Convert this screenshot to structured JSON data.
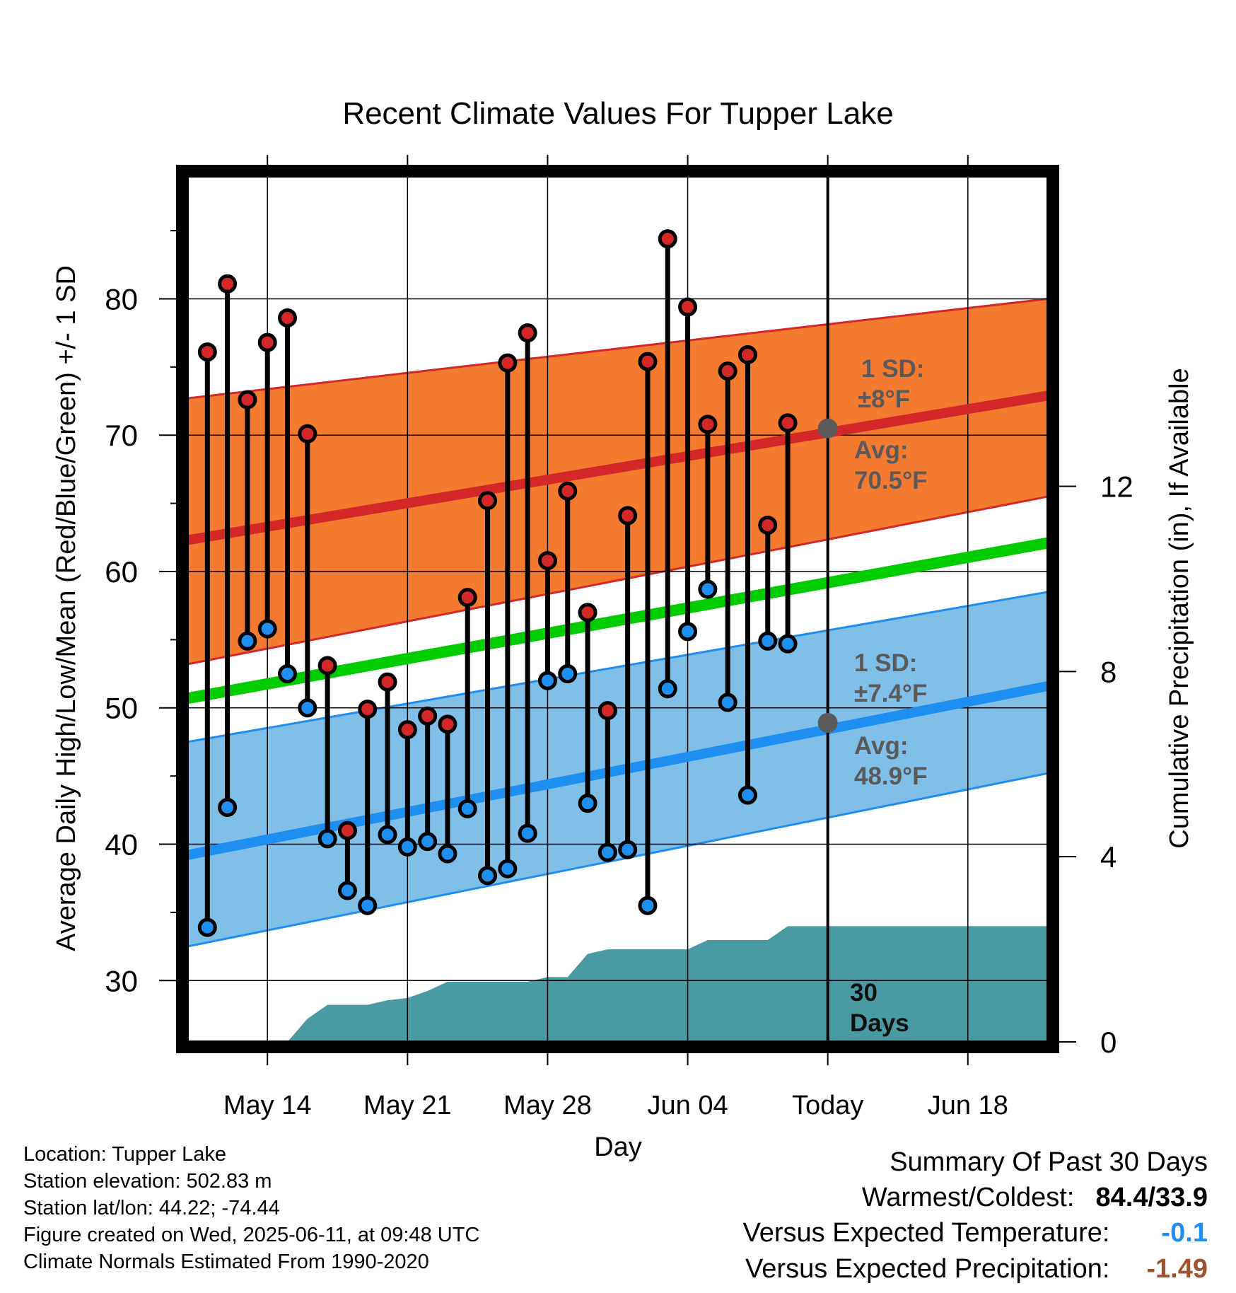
{
  "chart_data": {
    "type": "line",
    "title": "Recent Climate Values For Tupper Lake",
    "xlabel": "Day",
    "ylabel": "Average Daily High/Low/Mean (Red/Blue/Green) +/- 1 SD",
    "y2label": "Cumulative Precipitation (in), If Available",
    "ylim": [
      25.5,
      89
    ],
    "y_ticks": [
      30,
      40,
      50,
      60,
      70,
      80
    ],
    "y2lim": [
      0,
      18.7
    ],
    "y2_ticks": [
      0,
      4,
      8,
      12
    ],
    "x_range": [
      "2025-05-10",
      "2025-06-22"
    ],
    "x_tick_labels": [
      {
        "date": "2025-05-14",
        "label": "May 14"
      },
      {
        "date": "2025-05-21",
        "label": "May 21"
      },
      {
        "date": "2025-05-28",
        "label": "May 28"
      },
      {
        "date": "2025-06-04",
        "label": "Jun 04"
      },
      {
        "date": "2025-06-11",
        "label": "Today"
      },
      {
        "date": "2025-06-18",
        "label": "Jun 18"
      }
    ],
    "grid": true,
    "today": "2025-06-11",
    "normals": {
      "high_avg": {
        "start": 62.3,
        "end": 72.9,
        "color": "#d42828"
      },
      "high_band": {
        "start_lower": 53.2,
        "start_upper": 72.7,
        "end_lower": 65.5,
        "end_upper": 80.0,
        "color": "#f47a30"
      },
      "mean_avg": {
        "start": 50.7,
        "end": 62.1,
        "color": "#00cc00"
      },
      "low_avg": {
        "start": 39.2,
        "end": 51.6,
        "color": "#1e8ff0"
      },
      "low_band": {
        "start_lower": 32.5,
        "start_upper": 47.5,
        "end_lower": 45.2,
        "end_upper": 58.5,
        "color": "#7fbfe8"
      }
    },
    "series": [
      {
        "name": "High",
        "color": "#d42828",
        "values": [
          {
            "date": "2025-05-11",
            "y": 76.1
          },
          {
            "date": "2025-05-12",
            "y": 81.1
          },
          {
            "date": "2025-05-13",
            "y": 72.6
          },
          {
            "date": "2025-05-14",
            "y": 76.8
          },
          {
            "date": "2025-05-15",
            "y": 78.6
          },
          {
            "date": "2025-05-16",
            "y": 70.1
          },
          {
            "date": "2025-05-17",
            "y": 53.1
          },
          {
            "date": "2025-05-18",
            "y": 41.0
          },
          {
            "date": "2025-05-19",
            "y": 49.9
          },
          {
            "date": "2025-05-20",
            "y": 51.9
          },
          {
            "date": "2025-05-21",
            "y": 48.4
          },
          {
            "date": "2025-05-22",
            "y": 49.4
          },
          {
            "date": "2025-05-23",
            "y": 48.8
          },
          {
            "date": "2025-05-24",
            "y": 58.1
          },
          {
            "date": "2025-05-25",
            "y": 65.2
          },
          {
            "date": "2025-05-26",
            "y": 75.3
          },
          {
            "date": "2025-05-27",
            "y": 77.5
          },
          {
            "date": "2025-05-28",
            "y": 60.8
          },
          {
            "date": "2025-05-29",
            "y": 65.9
          },
          {
            "date": "2025-05-30",
            "y": 57.0
          },
          {
            "date": "2025-05-31",
            "y": 49.8
          },
          {
            "date": "2025-06-01",
            "y": 64.1
          },
          {
            "date": "2025-06-02",
            "y": 75.4
          },
          {
            "date": "2025-06-03",
            "y": 84.4
          },
          {
            "date": "2025-06-04",
            "y": 79.4
          },
          {
            "date": "2025-06-05",
            "y": 70.8
          },
          {
            "date": "2025-06-06",
            "y": 74.7
          },
          {
            "date": "2025-06-07",
            "y": 75.9
          },
          {
            "date": "2025-06-08",
            "y": 63.4
          },
          {
            "date": "2025-06-09",
            "y": 70.9
          }
        ]
      },
      {
        "name": "Low",
        "color": "#1e8ff0",
        "values": [
          {
            "date": "2025-05-11",
            "y": 33.9
          },
          {
            "date": "2025-05-12",
            "y": 42.7
          },
          {
            "date": "2025-05-13",
            "y": 54.9
          },
          {
            "date": "2025-05-14",
            "y": 55.8
          },
          {
            "date": "2025-05-15",
            "y": 52.5
          },
          {
            "date": "2025-05-16",
            "y": 50.0
          },
          {
            "date": "2025-05-17",
            "y": 40.4
          },
          {
            "date": "2025-05-18",
            "y": 36.6
          },
          {
            "date": "2025-05-19",
            "y": 35.5
          },
          {
            "date": "2025-05-20",
            "y": 40.7
          },
          {
            "date": "2025-05-21",
            "y": 39.8
          },
          {
            "date": "2025-05-22",
            "y": 40.2
          },
          {
            "date": "2025-05-23",
            "y": 39.3
          },
          {
            "date": "2025-05-24",
            "y": 42.6
          },
          {
            "date": "2025-05-25",
            "y": 37.7
          },
          {
            "date": "2025-05-26",
            "y": 38.2
          },
          {
            "date": "2025-05-27",
            "y": 40.8
          },
          {
            "date": "2025-05-28",
            "y": 52.0
          },
          {
            "date": "2025-05-29",
            "y": 52.5
          },
          {
            "date": "2025-05-30",
            "y": 43.0
          },
          {
            "date": "2025-05-31",
            "y": 39.4
          },
          {
            "date": "2025-06-01",
            "y": 39.6
          },
          {
            "date": "2025-06-02",
            "y": 35.5
          },
          {
            "date": "2025-06-03",
            "y": 51.4
          },
          {
            "date": "2025-06-04",
            "y": 55.6
          },
          {
            "date": "2025-06-05",
            "y": 58.7
          },
          {
            "date": "2025-06-06",
            "y": 50.4
          },
          {
            "date": "2025-06-07",
            "y": 43.6
          },
          {
            "date": "2025-06-08",
            "y": 54.9
          },
          {
            "date": "2025-06-09",
            "y": 54.7
          }
        ]
      }
    ],
    "precipitation": {
      "name": "Cumulative Precipitation",
      "color": "#4a9aa4",
      "values": [
        {
          "date": "2025-05-15",
          "y": 0.0
        },
        {
          "date": "2025-05-16",
          "y": 0.5
        },
        {
          "date": "2025-05-17",
          "y": 0.8
        },
        {
          "date": "2025-05-18",
          "y": 0.8
        },
        {
          "date": "2025-05-19",
          "y": 0.8
        },
        {
          "date": "2025-05-20",
          "y": 0.9
        },
        {
          "date": "2025-05-21",
          "y": 0.95
        },
        {
          "date": "2025-05-22",
          "y": 1.1
        },
        {
          "date": "2025-05-23",
          "y": 1.3
        },
        {
          "date": "2025-05-24",
          "y": 1.3
        },
        {
          "date": "2025-05-25",
          "y": 1.3
        },
        {
          "date": "2025-05-26",
          "y": 1.3
        },
        {
          "date": "2025-05-27",
          "y": 1.3
        },
        {
          "date": "2025-05-28",
          "y": 1.4
        },
        {
          "date": "2025-05-29",
          "y": 1.4
        },
        {
          "date": "2025-05-30",
          "y": 1.9
        },
        {
          "date": "2025-05-31",
          "y": 2.0
        },
        {
          "date": "2025-06-01",
          "y": 2.0
        },
        {
          "date": "2025-06-02",
          "y": 2.0
        },
        {
          "date": "2025-06-03",
          "y": 2.0
        },
        {
          "date": "2025-06-04",
          "y": 2.0
        },
        {
          "date": "2025-06-05",
          "y": 2.2
        },
        {
          "date": "2025-06-06",
          "y": 2.2
        },
        {
          "date": "2025-06-07",
          "y": 2.2
        },
        {
          "date": "2025-06-08",
          "y": 2.2
        },
        {
          "date": "2025-06-09",
          "y": 2.5
        },
        {
          "date": "2025-06-10",
          "y": 2.5
        },
        {
          "date": "2025-06-11",
          "y": 2.5
        },
        {
          "date": "2025-06-22",
          "y": 2.5
        }
      ]
    },
    "annotations": {
      "high_sd_label": "1 SD:",
      "high_sd_value": "±8°F",
      "high_avg_label": "Avg:",
      "high_avg_value": "70.5°F",
      "low_sd_label": "1 SD:",
      "low_sd_value": "±7.4°F",
      "low_avg_label": "Avg:",
      "low_avg_value": "48.9°F",
      "days_line1": "30",
      "days_line2": "Days",
      "marker_today_high": 70.5,
      "marker_today_low": 48.9,
      "annotation_color": "#5a5a5a"
    }
  },
  "info": {
    "location": "Location: Tupper Lake",
    "elevation": "Station elevation: 502.83 m",
    "latlon": "Station lat/lon: 44.22; -74.44",
    "created": "Figure created on Wed, 2025-06-11, at 09:48 UTC",
    "normals": "Climate Normals Estimated From 1990-2020"
  },
  "summary": {
    "title": "Summary Of Past 30 Days",
    "warm_cold_label": "Warmest/Coldest:",
    "warm_cold_value": "84.4/33.9",
    "temp_label": "Versus Expected Temperature:",
    "temp_value": "-0.1",
    "temp_color": "#1e8ff0",
    "precip_label": "Versus Expected Precipitation:",
    "precip_value": "-1.49",
    "precip_color": "#a0522d"
  }
}
